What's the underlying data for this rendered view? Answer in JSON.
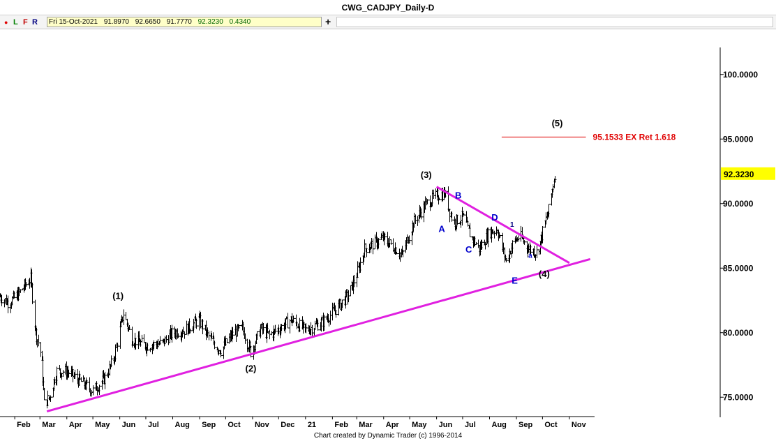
{
  "window": {
    "title": "CWG_CADJPY_Daily-D"
  },
  "toolbar": {
    "dot": "●",
    "l": "L",
    "f": "F",
    "r": "R",
    "date": "Fri 15-Oct-2021",
    "open": "91.8970",
    "high": "92.6650",
    "low": "91.7770",
    "close": "92.3230",
    "change": "0.4340",
    "add_label": "+"
  },
  "colors": {
    "accent_line": "#e020e0",
    "wave_blue": "#0000cc",
    "target_red": "#e00000",
    "price_tag": "#ffff00"
  },
  "footer": {
    "credit": "Chart created by Dynamic Trader  (c)  1996-2014"
  },
  "chart_data": {
    "type": "ohlc",
    "title": "CWG_CADJPY_Daily-D",
    "ylim": [
      73.5,
      103.5
    ],
    "y_ticks": [
      "100.0000",
      "95.0000",
      "90.0000",
      "85.0000",
      "80.0000",
      "75.0000"
    ],
    "x_month_labels": [
      "Feb",
      "Mar",
      "Apr",
      "May",
      "Jun",
      "Jul",
      "Aug",
      "Sep",
      "Oct",
      "Nov",
      "Dec",
      "21",
      "Feb",
      "Mar",
      "Apr",
      "May",
      "Jun",
      "Jul",
      "Aug",
      "Sep",
      "Oct",
      "Nov"
    ],
    "x_start": "2020-01-15",
    "x_end": "2021-11-30",
    "price_path": [
      [
        "2020-01-15",
        82.8
      ],
      [
        "2020-01-25",
        82.3
      ],
      [
        "2020-02-05",
        83.0
      ],
      [
        "2020-02-19",
        84.2
      ],
      [
        "2020-02-25",
        80.0
      ],
      [
        "2020-03-02",
        78.5
      ],
      [
        "2020-03-06",
        74.5
      ],
      [
        "2020-03-12",
        75.0
      ],
      [
        "2020-03-20",
        77.0
      ],
      [
        "2020-04-01",
        77.0
      ],
      [
        "2020-04-15",
        76.3
      ],
      [
        "2020-05-01",
        75.5
      ],
      [
        "2020-05-15",
        76.5
      ],
      [
        "2020-05-25",
        78.0
      ],
      [
        "2020-06-05",
        81.5
      ],
      [
        "2020-06-15",
        79.5
      ],
      [
        "2020-07-01",
        79.0
      ],
      [
        "2020-07-20",
        79.2
      ],
      [
        "2020-08-01",
        80.0
      ],
      [
        "2020-08-15",
        80.2
      ],
      [
        "2020-08-31",
        81.0
      ],
      [
        "2020-09-10",
        79.8
      ],
      [
        "2020-09-25",
        78.6
      ],
      [
        "2020-10-10",
        80.0
      ],
      [
        "2020-10-20",
        80.3
      ],
      [
        "2020-10-30",
        78.5
      ],
      [
        "2020-11-10",
        80.3
      ],
      [
        "2020-11-20",
        79.8
      ],
      [
        "2020-12-01",
        80.3
      ],
      [
        "2020-12-15",
        81.0
      ],
      [
        "2021-01-01",
        80.2
      ],
      [
        "2021-01-20",
        80.8
      ],
      [
        "2021-02-05",
        81.8
      ],
      [
        "2021-02-20",
        83.0
      ],
      [
        "2021-03-01",
        84.5
      ],
      [
        "2021-03-10",
        86.5
      ],
      [
        "2021-03-31",
        87.3
      ],
      [
        "2021-04-10",
        86.8
      ],
      [
        "2021-04-22",
        86.0
      ],
      [
        "2021-05-05",
        88.5
      ],
      [
        "2021-05-20",
        90.0
      ],
      [
        "2021-06-01",
        90.6
      ],
      [
        "2021-06-10",
        90.8
      ],
      [
        "2021-06-20",
        88.5
      ],
      [
        "2021-07-01",
        89.0
      ],
      [
        "2021-07-10",
        87.5
      ],
      [
        "2021-07-20",
        86.5
      ],
      [
        "2021-08-01",
        87.8
      ],
      [
        "2021-08-10",
        88.0
      ],
      [
        "2021-08-20",
        85.5
      ],
      [
        "2021-08-28",
        87.0
      ],
      [
        "2021-09-05",
        87.5
      ],
      [
        "2021-09-15",
        86.5
      ],
      [
        "2021-09-25",
        86.2
      ],
      [
        "2021-10-01",
        87.8
      ],
      [
        "2021-10-08",
        89.5
      ],
      [
        "2021-10-15",
        92.3
      ]
    ],
    "last_price_label": "92.3230",
    "trendlines": [
      {
        "name": "lower-support-line",
        "x1": "2020-03-09",
        "y1": 73.9,
        "x2": "2021-11-25",
        "y2": 85.7
      },
      {
        "name": "upper-wedge-line",
        "x1": "2021-06-01",
        "y1": 91.3,
        "x2": "2021-11-01",
        "y2": 85.4
      }
    ],
    "target": {
      "label": "95.1533 EX Ret 1.618",
      "value": 95.1533,
      "x_from": "2021-08-15",
      "x_to": "2021-11-20"
    },
    "annotations": [
      {
        "text": "(1)",
        "x": "2020-05-30",
        "y": 82.6,
        "color": "#000000"
      },
      {
        "text": "(2)",
        "x": "2020-10-30",
        "y": 77.0,
        "color": "#000000"
      },
      {
        "text": "(3)",
        "x": "2021-05-20",
        "y": 92.0,
        "color": "#000000"
      },
      {
        "text": "(4)",
        "x": "2021-10-03",
        "y": 84.3,
        "color": "#000000"
      },
      {
        "text": "(5)",
        "x": "2021-10-18",
        "y": 96.0,
        "color": "#000000"
      },
      {
        "text": "A",
        "x": "2021-06-07",
        "y": 87.8,
        "color": "#0000cc"
      },
      {
        "text": "B",
        "x": "2021-06-26",
        "y": 90.4,
        "color": "#0000cc"
      },
      {
        "text": "C",
        "x": "2021-07-08",
        "y": 86.2,
        "color": "#0000cc"
      },
      {
        "text": "D",
        "x": "2021-08-07",
        "y": 88.7,
        "color": "#0000cc"
      },
      {
        "text": "E",
        "x": "2021-08-30",
        "y": 83.8,
        "color": "#0000cc"
      },
      {
        "text": "1",
        "x": "2021-08-27",
        "y": 88.2,
        "color": "#000080",
        "small": true
      },
      {
        "text": "a",
        "x": "2021-09-17",
        "y": 85.8,
        "color": "#0000cc",
        "small": true
      }
    ]
  }
}
